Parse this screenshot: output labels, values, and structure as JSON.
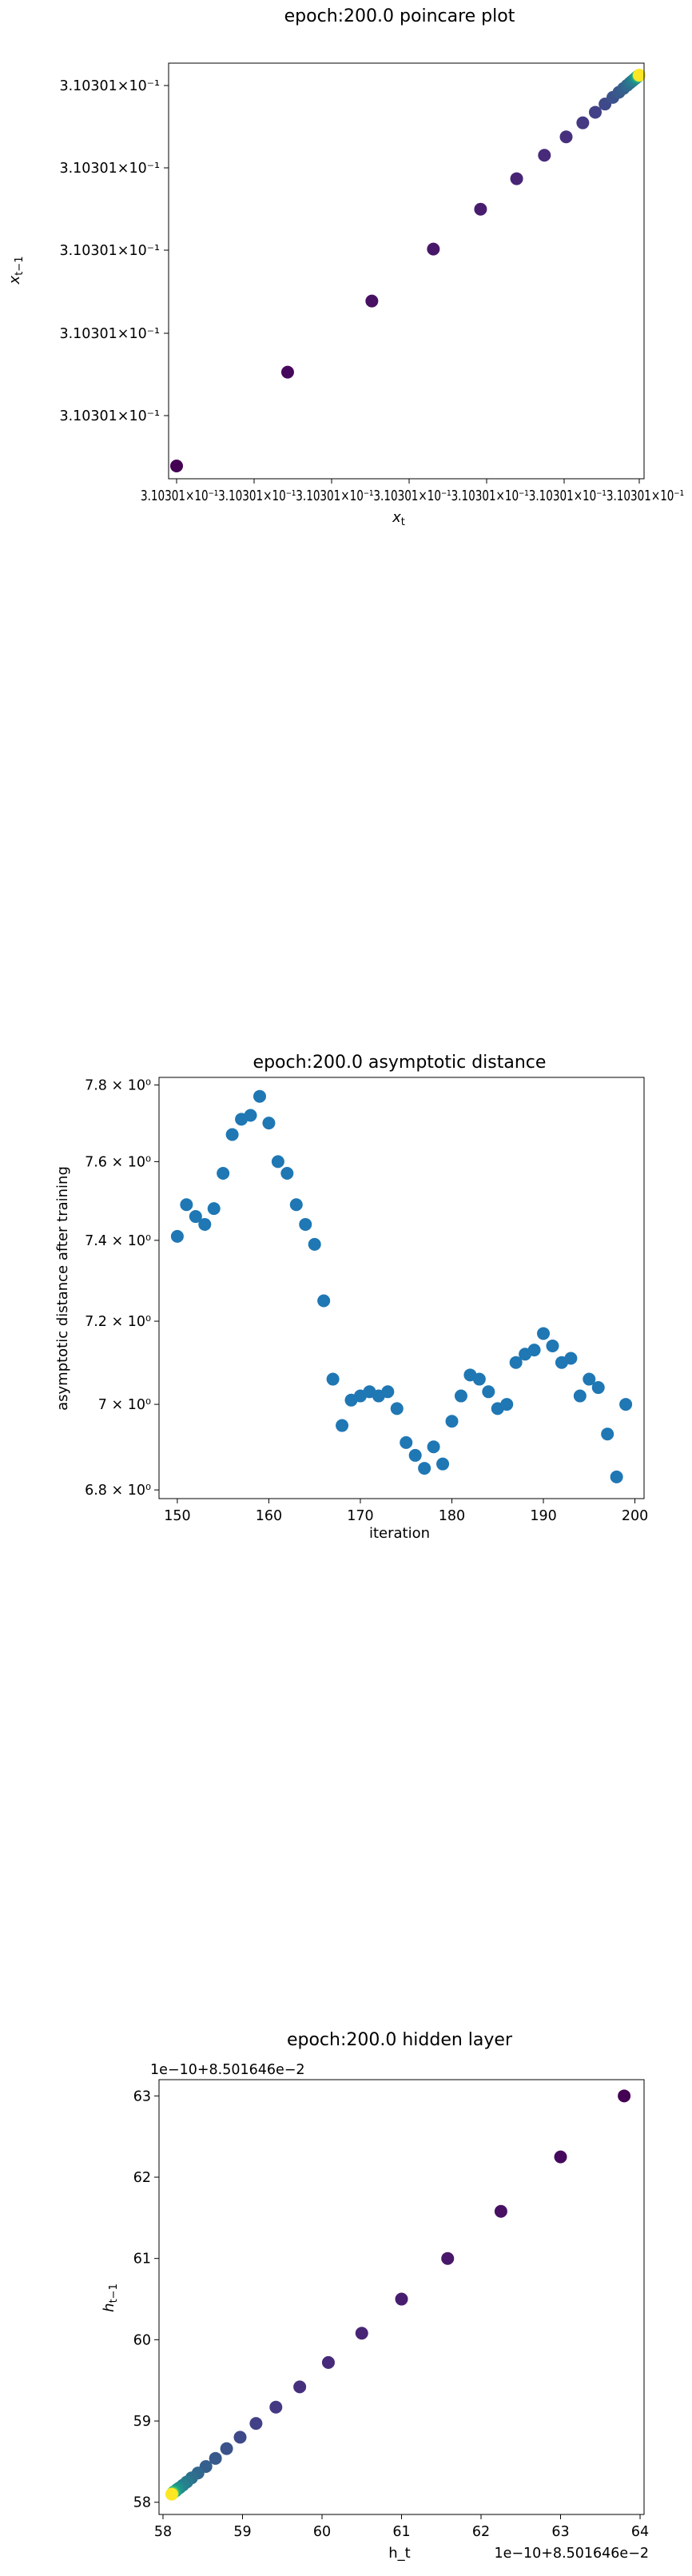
{
  "chart_data": [
    {
      "type": "scatter",
      "title": "epoch:200.0 poincare plot",
      "xlabel": "x_t",
      "ylabel": "x_{t−1}",
      "x_ticks": [
        "3.10301×10⁻¹",
        "3.10301×10⁻¹",
        "3.10301×10⁻¹",
        "3.10301×10⁻¹",
        "3.10301×10⁻¹",
        "3.10301×10⁻¹",
        "3.10301×10⁻¹"
      ],
      "x_tick_text": "3.10301×10⁻¹3.10301×10⁻¹3.10301×10⁻¹3.10301×10⁻¹3.10301×10⁻¹3.10301×10⁻¹3.10301×10⁻¹",
      "y_ticks": [
        "3.10301×10⁻¹",
        "3.10301×10⁻¹",
        "3.10301×10⁻¹",
        "3.10301×10⁻¹",
        "3.10301×10⁻¹"
      ],
      "note": "point values indistinguishable at printed precision; relative position 0-1 along diagonal",
      "x": [
        0.0,
        0.24,
        0.422,
        0.555,
        0.657,
        0.735,
        0.795,
        0.842,
        0.878,
        0.905,
        0.926,
        0.943,
        0.956,
        0.966,
        0.974,
        0.98,
        0.985,
        0.989,
        0.992,
        0.994,
        0.996,
        0.997,
        0.998,
        0.999,
        1.0
      ],
      "y": [
        0.0,
        0.24,
        0.422,
        0.555,
        0.657,
        0.735,
        0.795,
        0.842,
        0.878,
        0.905,
        0.926,
        0.943,
        0.956,
        0.966,
        0.974,
        0.98,
        0.985,
        0.989,
        0.992,
        0.994,
        0.996,
        0.997,
        0.998,
        0.999,
        1.0
      ],
      "colormap": "viridis",
      "colors": [
        "#440154",
        "#46085c",
        "#471063",
        "#481769",
        "#481d6f",
        "#482475",
        "#472a7a",
        "#46307e",
        "#443983",
        "#424086",
        "#3e4989",
        "#3b528b",
        "#38598c",
        "#355f8d",
        "#31688e",
        "#2e6f8e",
        "#2a788e",
        "#277f8e",
        "#24868e",
        "#21918c",
        "#1f988b",
        "#20a386",
        "#2eb37c",
        "#5ec962",
        "#fde725"
      ]
    },
    {
      "type": "scatter",
      "title": "epoch:200.0 asymptotic distance",
      "xlabel": "iteration",
      "ylabel": "asymptotic distance after training",
      "yscale": "log",
      "xlim": [
        148,
        201
      ],
      "ylim": [
        6.78,
        7.82
      ],
      "x_ticks": [
        "150",
        "160",
        "170",
        "180",
        "190",
        "200"
      ],
      "y_ticks": [
        "6.8 × 10⁰",
        "7 × 10⁰",
        "7.2 × 10⁰",
        "7.4 × 10⁰",
        "7.6 × 10⁰",
        "7.8 × 10⁰"
      ],
      "x_tick_values": [
        150,
        160,
        170,
        180,
        190,
        200
      ],
      "y_tick_values": [
        6.8,
        7.0,
        7.2,
        7.4,
        7.6,
        7.8
      ],
      "x": [
        150,
        151,
        152,
        153,
        154,
        155,
        156,
        157,
        158,
        159,
        160,
        161,
        162,
        163,
        164,
        165,
        166,
        167,
        168,
        169,
        170,
        171,
        172,
        173,
        174,
        175,
        176,
        177,
        178,
        179,
        180,
        181,
        182,
        183,
        184,
        185,
        186,
        187,
        188,
        189,
        190,
        191,
        192,
        193,
        194,
        195,
        196,
        197,
        198,
        199
      ],
      "y": [
        7.41,
        7.49,
        7.46,
        7.44,
        7.48,
        7.57,
        7.67,
        7.71,
        7.72,
        7.77,
        7.7,
        7.6,
        7.57,
        7.49,
        7.44,
        7.39,
        7.25,
        7.06,
        6.95,
        7.01,
        7.02,
        7.03,
        7.02,
        7.03,
        6.99,
        6.91,
        6.88,
        6.85,
        6.9,
        6.86,
        6.96,
        7.02,
        7.07,
        7.06,
        7.03,
        6.99,
        7.0,
        7.1,
        7.12,
        7.13,
        7.17,
        7.14,
        7.1,
        7.11,
        7.02,
        7.06,
        7.04,
        6.93,
        6.83,
        7.0
      ],
      "color": "#1f77b4"
    },
    {
      "type": "scatter",
      "title": "epoch:200.0 hidden layer",
      "xlabel": "h_t",
      "ylabel": "h_{t−1}",
      "offset_text_x": "1e−10+8.501646e−2",
      "offset_text_y": "1e−10+8.501646e−2",
      "xlim": [
        57.95,
        64.05
      ],
      "ylim": [
        57.85,
        63.2
      ],
      "x_ticks": [
        "58",
        "59",
        "60",
        "61",
        "62",
        "63",
        "64"
      ],
      "y_ticks": [
        "58",
        "59",
        "60",
        "61",
        "62",
        "63"
      ],
      "x_tick_values": [
        58,
        59,
        60,
        61,
        62,
        63,
        64
      ],
      "y_tick_values": [
        58,
        59,
        60,
        61,
        62,
        63
      ],
      "x": [
        63.8,
        63.0,
        62.25,
        61.58,
        61.0,
        60.5,
        60.08,
        59.72,
        59.42,
        59.17,
        58.97,
        58.8,
        58.66,
        58.54,
        58.44,
        58.36,
        58.3,
        58.25,
        58.21,
        58.18,
        58.16,
        58.14,
        58.13,
        58.12,
        58.11
      ],
      "y": [
        63.0,
        62.25,
        61.58,
        61.0,
        60.5,
        60.08,
        59.72,
        59.42,
        59.17,
        58.97,
        58.8,
        58.66,
        58.54,
        58.44,
        58.36,
        58.3,
        58.25,
        58.21,
        58.18,
        58.16,
        58.14,
        58.13,
        58.12,
        58.11,
        58.1
      ],
      "colormap": "viridis",
      "colors": [
        "#440154",
        "#46085c",
        "#471063",
        "#481769",
        "#481d6f",
        "#482475",
        "#472a7a",
        "#46307e",
        "#443983",
        "#424086",
        "#3e4989",
        "#3b528b",
        "#38598c",
        "#355f8d",
        "#31688e",
        "#2e6f8e",
        "#2a788e",
        "#277f8e",
        "#24868e",
        "#21918c",
        "#1f988b",
        "#20a386",
        "#2eb37c",
        "#5ec962",
        "#fde725"
      ]
    }
  ]
}
